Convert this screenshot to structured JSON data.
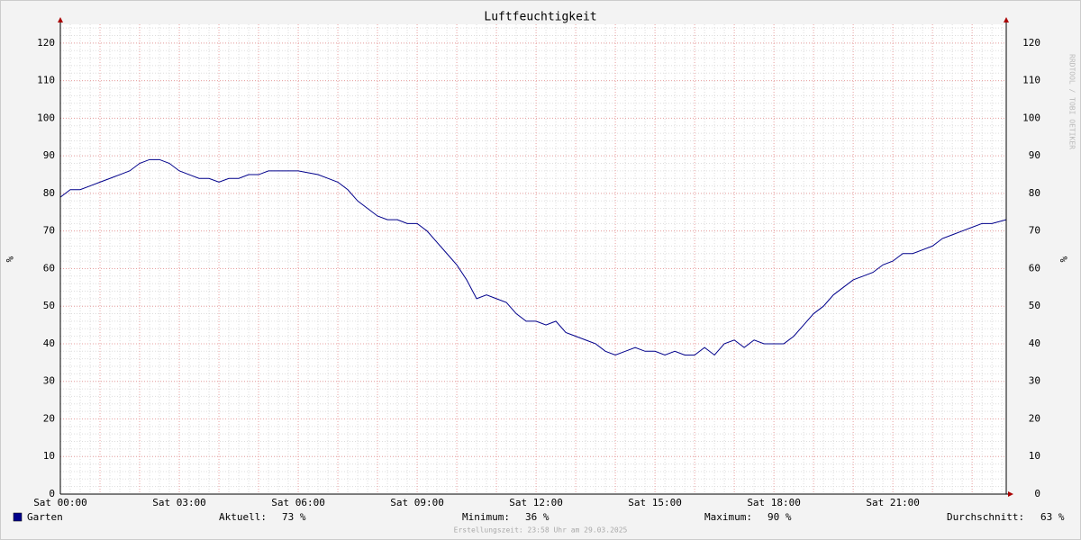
{
  "chart_data": {
    "type": "line",
    "title": "Luftfeuchtigkeit",
    "ylabel": "%",
    "watermark": "RRDTOOL / TOBI OETIKER",
    "footer": "Erstellungszeit: 23:58 Uhr am 29.03.2025",
    "x": [
      0,
      0.25,
      0.5,
      0.75,
      1,
      1.25,
      1.5,
      1.75,
      2,
      2.25,
      2.5,
      2.75,
      3,
      3.25,
      3.5,
      3.75,
      4,
      4.25,
      4.5,
      4.75,
      5,
      5.25,
      5.5,
      6,
      6.5,
      6.75,
      7,
      7.25,
      7.5,
      7.75,
      8,
      8.25,
      8.5,
      8.75,
      9,
      9.25,
      9.5,
      9.75,
      10,
      10.25,
      10.5,
      10.75,
      11,
      11.25,
      11.5,
      11.75,
      12,
      12.25,
      12.5,
      12.75,
      13,
      13.25,
      13.5,
      13.75,
      14,
      14.25,
      14.5,
      14.75,
      15,
      15.25,
      15.5,
      15.75,
      16,
      16.25,
      16.5,
      16.75,
      17,
      17.25,
      17.5,
      17.75,
      18,
      18.25,
      18.5,
      18.75,
      19,
      19.25,
      19.5,
      19.75,
      20,
      20.25,
      20.5,
      20.75,
      21,
      21.25,
      21.5,
      21.75,
      22,
      22.25,
      22.5,
      22.75,
      23,
      23.25,
      23.5,
      23.86
    ],
    "series": [
      {
        "name": "Garten",
        "color": "#00008b",
        "values": [
          79,
          81,
          81,
          82,
          83,
          84,
          85,
          86,
          88,
          89,
          89,
          88,
          86,
          85,
          84,
          84,
          83,
          84,
          84,
          85,
          85,
          86,
          86,
          86,
          85,
          84,
          83,
          81,
          78,
          76,
          74,
          73,
          73,
          72,
          72,
          70,
          67,
          64,
          61,
          57,
          52,
          53,
          52,
          51,
          48,
          46,
          46,
          45,
          46,
          43,
          42,
          41,
          40,
          38,
          37,
          38,
          39,
          38,
          38,
          37,
          38,
          37,
          37,
          39,
          37,
          40,
          41,
          39,
          41,
          40,
          40,
          40,
          42,
          45,
          48,
          50,
          53,
          55,
          57,
          58,
          59,
          61,
          62,
          64,
          64,
          65,
          66,
          68,
          69,
          70,
          71,
          72,
          72,
          73
        ]
      }
    ],
    "xlim": [
      0,
      23.86
    ],
    "ylim": [
      0,
      125
    ],
    "xticks": [
      {
        "value": 0,
        "label": "Sat 00:00"
      },
      {
        "value": 3,
        "label": "Sat 03:00"
      },
      {
        "value": 6,
        "label": "Sat 06:00"
      },
      {
        "value": 9,
        "label": "Sat 09:00"
      },
      {
        "value": 12,
        "label": "Sat 12:00"
      },
      {
        "value": 15,
        "label": "Sat 15:00"
      },
      {
        "value": 18,
        "label": "Sat 18:00"
      },
      {
        "value": 21,
        "label": "Sat 21:00"
      }
    ],
    "yticks": [
      0,
      10,
      20,
      30,
      40,
      50,
      60,
      70,
      80,
      90,
      100,
      110,
      120
    ],
    "grid": true,
    "stats": {
      "labels": [
        "Aktuell:",
        "Minimum:",
        "Maximum:",
        "Durchschnitt:"
      ],
      "values": [
        73,
        36,
        90,
        63
      ],
      "value_labels": [
        "73 %",
        "36 %",
        "90 %",
        "63 %"
      ]
    }
  }
}
